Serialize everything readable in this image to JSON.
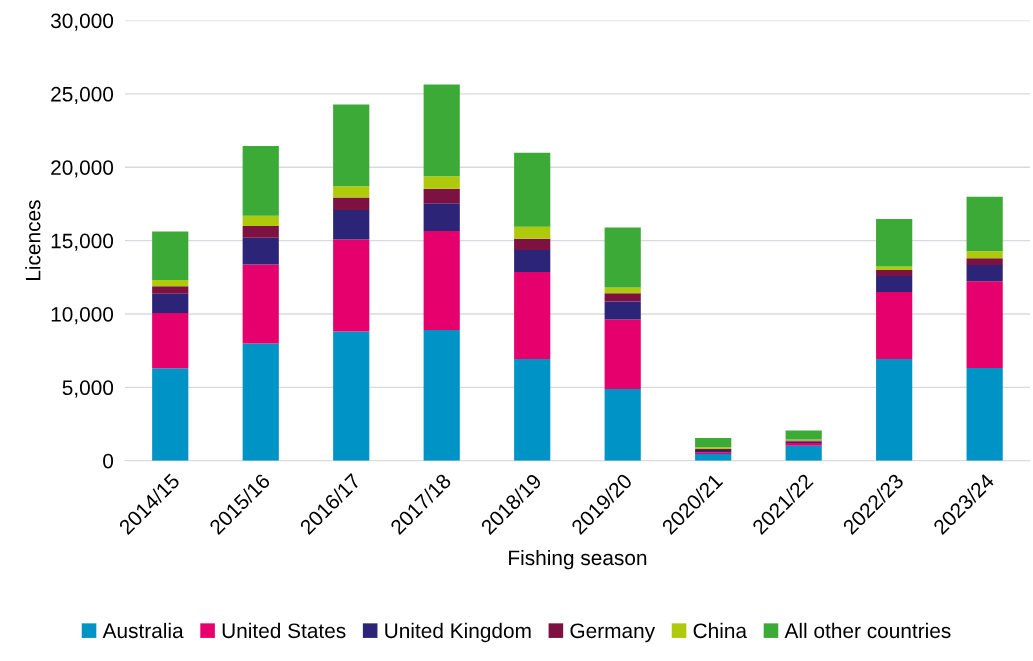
{
  "chart_data": {
    "type": "bar",
    "stacked": true,
    "xlabel": "Fishing season",
    "ylabel": "Licences",
    "categories": [
      "2014/15",
      "2015/16",
      "2016/17",
      "2017/18",
      "2018/19",
      "2019/20",
      "2020/21",
      "2021/22",
      "2022/23",
      "2023/24"
    ],
    "series": [
      {
        "name": "Australia",
        "color": "#0094c6",
        "values": [
          6300,
          7980,
          8800,
          8910,
          6930,
          4890,
          450,
          1020,
          6930,
          6320
        ]
      },
      {
        "name": "United States",
        "color": "#e5006e",
        "values": [
          3770,
          5390,
          6270,
          6750,
          5930,
          4730,
          120,
          180,
          4570,
          5910
        ]
      },
      {
        "name": "United Kingdom",
        "color": "#2c2577",
        "values": [
          1300,
          1820,
          2020,
          1890,
          1500,
          1230,
          160,
          110,
          1090,
          1110
        ]
      },
      {
        "name": "Germany",
        "color": "#7d1142",
        "values": [
          520,
          800,
          840,
          980,
          770,
          570,
          70,
          70,
          410,
          460
        ]
      },
      {
        "name": "China",
        "color": "#afca0b",
        "values": [
          430,
          700,
          770,
          860,
          820,
          390,
          110,
          70,
          230,
          470
        ]
      },
      {
        "name": "All other countries",
        "color": "#3caa36",
        "values": [
          3300,
          4750,
          5570,
          6240,
          5040,
          4090,
          640,
          610,
          3250,
          3710
        ]
      }
    ],
    "ylim": [
      0,
      30000
    ],
    "yticks": [
      {
        "value": 0,
        "label": "0"
      },
      {
        "value": 5000,
        "label": "5,000"
      },
      {
        "value": 10000,
        "label": "10,000"
      },
      {
        "value": 15000,
        "label": "15,000"
      },
      {
        "value": 20000,
        "label": "20,000"
      },
      {
        "value": 25000,
        "label": "25,000"
      },
      {
        "value": 30000,
        "label": "30,000"
      }
    ],
    "grid": "y",
    "legend": "bottom"
  }
}
